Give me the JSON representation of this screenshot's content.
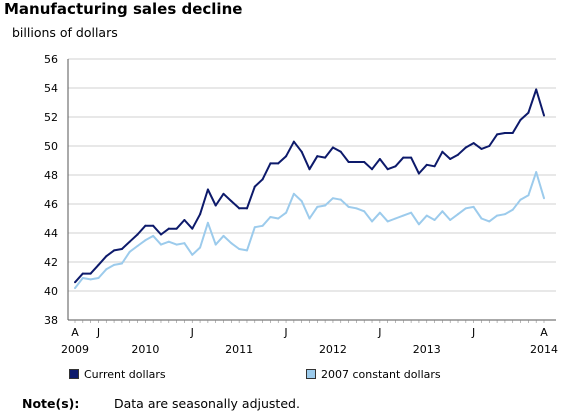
{
  "chart_data": {
    "type": "line",
    "title": "Manufacturing sales decline",
    "ylabel": "billions of dollars",
    "ylim": [
      38,
      56
    ],
    "yticks": [
      38,
      40,
      42,
      44,
      46,
      48,
      50,
      52,
      54,
      56
    ],
    "grid": true,
    "x_start": "2009-04",
    "x_tick_labels": [
      {
        "month": "A",
        "year": "2009",
        "index": 0
      },
      {
        "month": "J",
        "year": "",
        "index": 3
      },
      {
        "month": "",
        "year": "2010",
        "index": 9
      },
      {
        "month": "J",
        "year": "",
        "index": 15
      },
      {
        "month": "",
        "year": "2011",
        "index": 21
      },
      {
        "month": "J",
        "year": "",
        "index": 27
      },
      {
        "month": "",
        "year": "2012",
        "index": 33
      },
      {
        "month": "J",
        "year": "",
        "index": 39
      },
      {
        "month": "",
        "year": "2013",
        "index": 45
      },
      {
        "month": "J",
        "year": "",
        "index": 51
      },
      {
        "month": "A",
        "year": "2014",
        "index": 60
      }
    ],
    "series": [
      {
        "name": "Current dollars",
        "color": "#0d1a6b",
        "values": [
          40.6,
          41.2,
          41.2,
          41.8,
          42.4,
          42.8,
          42.9,
          43.4,
          43.9,
          44.5,
          44.5,
          43.9,
          44.3,
          44.3,
          44.9,
          44.3,
          45.3,
          47.0,
          45.9,
          46.7,
          46.2,
          45.7,
          45.7,
          47.2,
          47.7,
          48.8,
          48.8,
          49.3,
          50.3,
          49.6,
          48.4,
          49.3,
          49.2,
          49.9,
          49.6,
          48.9,
          48.9,
          48.9,
          48.4,
          49.1,
          48.4,
          48.6,
          49.2,
          49.2,
          48.1,
          48.7,
          48.6,
          49.6,
          49.1,
          49.4,
          49.9,
          50.2,
          49.8,
          50.0,
          50.8,
          50.9,
          50.9,
          51.8,
          52.3,
          53.9,
          52.1
        ]
      },
      {
        "name": "2007 constant dollars",
        "color": "#9ccbec",
        "values": [
          40.2,
          40.9,
          40.8,
          40.9,
          41.5,
          41.8,
          41.9,
          42.7,
          43.1,
          43.5,
          43.8,
          43.2,
          43.4,
          43.2,
          43.3,
          42.5,
          43.0,
          44.7,
          43.2,
          43.8,
          43.3,
          42.9,
          42.8,
          44.4,
          44.5,
          45.1,
          45.0,
          45.4,
          46.7,
          46.2,
          45.0,
          45.8,
          45.9,
          46.4,
          46.3,
          45.8,
          45.7,
          45.5,
          44.8,
          45.4,
          44.8,
          45.0,
          45.2,
          45.4,
          44.6,
          45.2,
          44.9,
          45.5,
          44.9,
          45.3,
          45.7,
          45.8,
          45.0,
          44.8,
          45.2,
          45.3,
          45.6,
          46.3,
          46.6,
          48.2,
          46.4
        ]
      }
    ]
  },
  "legend": {
    "current_label": "Current dollars",
    "constant_label": "2007 constant dollars"
  },
  "note": {
    "label": "Note(s):",
    "text": "Data are seasonally adjusted."
  },
  "colors": {
    "grid": "#d0d0d0",
    "axis": "#555555"
  }
}
